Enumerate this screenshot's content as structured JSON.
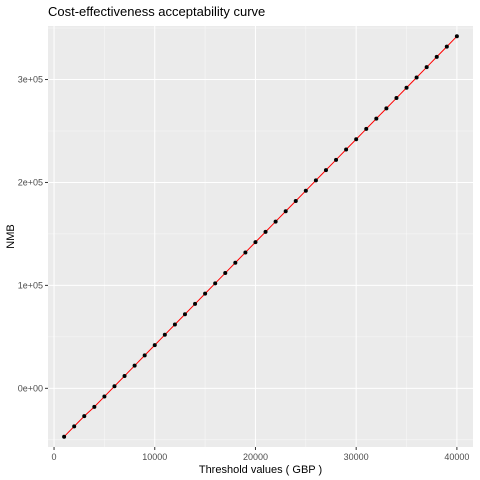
{
  "chart_data": {
    "type": "line",
    "title": "Cost-effectiveness acceptability curve",
    "xlabel": "Threshold values ( GBP )",
    "ylabel": "NMB",
    "xlim": [
      -600,
      41600
    ],
    "ylim": [
      -57000,
      352000
    ],
    "x_ticks": [
      0,
      10000,
      20000,
      30000,
      40000
    ],
    "x_tick_labels": [
      "0",
      "10000",
      "20000",
      "30000",
      "40000"
    ],
    "y_ticks": [
      0,
      100000,
      200000,
      300000
    ],
    "y_tick_labels": [
      "0e+00",
      "1e+05",
      "2e+05",
      "3e+05"
    ],
    "grid": true,
    "background_color": "#ebebeb",
    "grid_color": "#ffffff",
    "line_color": "#ff0000",
    "point_color": "#000000",
    "series": [
      {
        "x": [
          1000,
          2000,
          3000,
          4000,
          5000,
          6000,
          7000,
          8000,
          9000,
          10000,
          11000,
          12000,
          13000,
          14000,
          15000,
          16000,
          17000,
          18000,
          19000,
          20000,
          21000,
          22000,
          23000,
          24000,
          25000,
          26000,
          27000,
          28000,
          29000,
          30000,
          31000,
          32000,
          33000,
          34000,
          35000,
          36000,
          37000,
          38000,
          39000,
          40000
        ],
        "y": [
          -47000,
          -37000,
          -27000,
          -18000,
          -8000,
          2000,
          12000,
          22000,
          32000,
          42000,
          52000,
          62000,
          72000,
          82000,
          92000,
          102000,
          112000,
          122000,
          132000,
          142000,
          152000,
          162000,
          172000,
          182000,
          192000,
          202000,
          212000,
          222000,
          232000,
          242000,
          252000,
          262000,
          272000,
          282000,
          292000,
          302000,
          312000,
          322000,
          332000,
          342000
        ]
      }
    ]
  }
}
